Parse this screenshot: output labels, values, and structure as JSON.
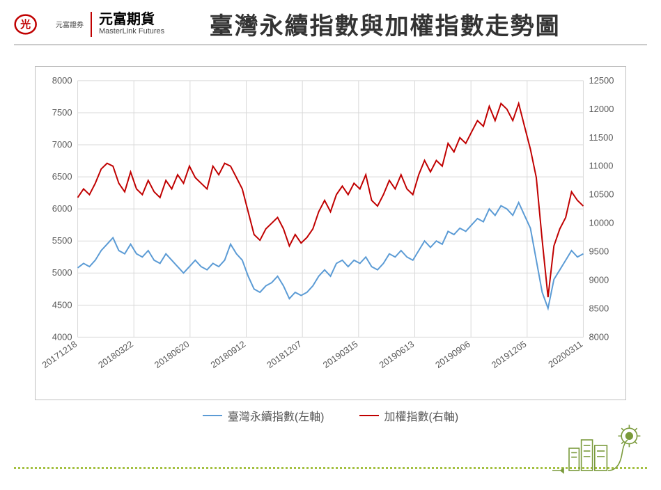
{
  "header": {
    "logo_sub": "元富證券",
    "logo_cn": "元富期貨",
    "logo_en": "MasterLink Futures",
    "title": "臺灣永續指數與加權指數走勢圖"
  },
  "chart": {
    "type": "line",
    "background_color": "#ffffff",
    "border_color": "#bfbfbf",
    "grid_color": "#d9d9d9",
    "axis_text_color": "#595959",
    "label_fontsize": 13,
    "x_labels": [
      "20171218",
      "20180322",
      "20180620",
      "20180912",
      "20181207",
      "20190315",
      "20190613",
      "20190906",
      "20191205",
      "20200311"
    ],
    "left_axis": {
      "min": 4000,
      "max": 8000,
      "step": 500,
      "ticks": [
        4000,
        4500,
        5000,
        5500,
        6000,
        6500,
        7000,
        7500,
        8000
      ]
    },
    "right_axis": {
      "min": 8000,
      "max": 12500,
      "step": 500,
      "ticks": [
        8000,
        8500,
        9000,
        9500,
        10000,
        10500,
        11000,
        11500,
        12000,
        12500
      ]
    },
    "series": [
      {
        "name": "臺灣永續指數(左軸)",
        "axis": "left",
        "color": "#5b9bd5",
        "line_width": 2,
        "data": [
          5080,
          5150,
          5100,
          5200,
          5350,
          5450,
          5550,
          5350,
          5300,
          5450,
          5300,
          5250,
          5350,
          5200,
          5150,
          5300,
          5200,
          5100,
          5000,
          5100,
          5200,
          5100,
          5050,
          5150,
          5100,
          5200,
          5450,
          5300,
          5200,
          4950,
          4750,
          4700,
          4800,
          4850,
          4950,
          4800,
          4600,
          4700,
          4650,
          4700,
          4800,
          4950,
          5050,
          4950,
          5150,
          5200,
          5100,
          5200,
          5150,
          5250,
          5100,
          5050,
          5150,
          5300,
          5250,
          5350,
          5250,
          5200,
          5350,
          5500,
          5400,
          5500,
          5450,
          5650,
          5600,
          5700,
          5650,
          5750,
          5850,
          5800,
          6000,
          5900,
          6050,
          6000,
          5900,
          6100,
          5900,
          5700,
          5200,
          4700,
          4450,
          4900,
          5050,
          5200,
          5350,
          5250,
          5300
        ]
      },
      {
        "name": "加權指數(右軸)",
        "axis": "right",
        "color": "#c00000",
        "line_width": 2,
        "data": [
          10450,
          10600,
          10500,
          10700,
          10950,
          11050,
          11000,
          10700,
          10550,
          10900,
          10600,
          10500,
          10750,
          10550,
          10450,
          10750,
          10600,
          10850,
          10700,
          11000,
          10800,
          10700,
          10600,
          11000,
          10850,
          11050,
          11000,
          10800,
          10600,
          10200,
          9800,
          9700,
          9900,
          10000,
          10100,
          9900,
          9600,
          9800,
          9650,
          9750,
          9900,
          10200,
          10400,
          10200,
          10500,
          10650,
          10500,
          10700,
          10600,
          10850,
          10400,
          10300,
          10500,
          10750,
          10600,
          10850,
          10600,
          10500,
          10850,
          11100,
          10900,
          11100,
          11000,
          11400,
          11250,
          11500,
          11400,
          11600,
          11800,
          11700,
          12050,
          11800,
          12100,
          12000,
          11800,
          12100,
          11700,
          11300,
          10800,
          9700,
          8700,
          9600,
          9900,
          10100,
          10550,
          10400,
          10300
        ]
      }
    ]
  },
  "legend": {
    "items": [
      {
        "label": "臺灣永續指數(左軸)",
        "color": "#5b9bd5"
      },
      {
        "label": "加權指數(右軸)",
        "color": "#c00000"
      }
    ]
  }
}
